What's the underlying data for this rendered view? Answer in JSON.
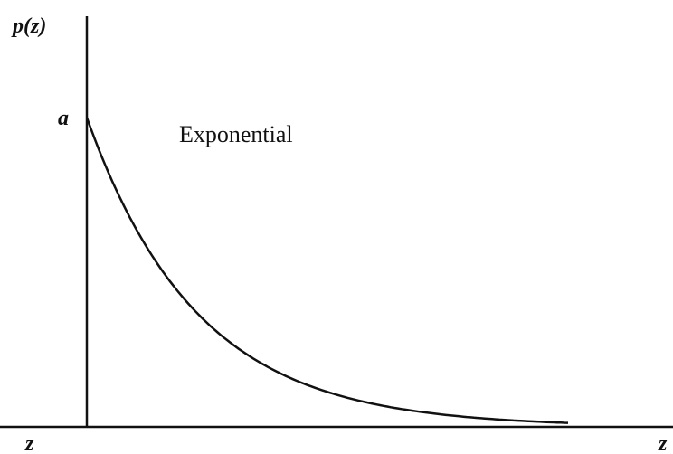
{
  "axes": {
    "y_label": "p(z)",
    "x_label": "z",
    "origin_label": "z"
  },
  "annotations": {
    "peak_label": "a",
    "curve_label": "Exponential"
  }
}
